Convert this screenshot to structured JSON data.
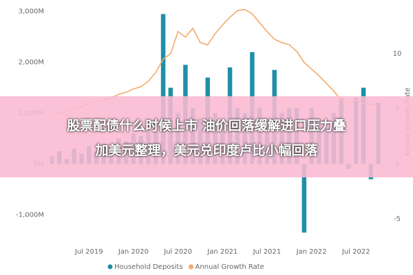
{
  "chart_data": {
    "type": "bar_line",
    "categories": [
      null,
      null,
      null,
      null,
      null,
      "Jul 2019",
      null,
      null,
      null,
      null,
      null,
      "Jan 2020",
      null,
      null,
      null,
      null,
      null,
      "Jul 2020",
      null,
      null,
      null,
      null,
      null,
      "Jan 2021",
      null,
      null,
      null,
      null,
      null,
      "Jul 2021",
      null,
      null,
      null,
      null,
      null,
      "Jan 2022",
      null,
      null,
      null,
      null,
      null,
      "Jul 2022",
      null,
      null,
      null
    ],
    "series": [
      {
        "name": "Household Deposits",
        "color": "#1f8fa8",
        "type": "bar",
        "values": [
          150,
          250,
          100,
          300,
          200,
          350,
          250,
          400,
          300,
          500,
          450,
          600,
          550,
          700,
          900,
          2950,
          1500,
          1000,
          1950,
          1100,
          900,
          1700,
          1000,
          800,
          1900,
          1100,
          1000,
          2200,
          1100,
          900,
          1850,
          1000,
          1100,
          1100,
          -1350,
          1100,
          900,
          700,
          1000,
          1300,
          -100,
          1300,
          1500,
          -300,
          1200
        ]
      },
      {
        "name": "Annual Growth Rate",
        "color": "#f2a96a",
        "type": "line",
        "axis": "y2",
        "values": [
          4.5,
          4.6,
          4.8,
          5.0,
          5.2,
          5.5,
          5.6,
          5.8,
          6.0,
          6.3,
          6.5,
          6.8,
          7.0,
          7.5,
          8.3,
          9.5,
          10.0,
          12.0,
          11.5,
          12.3,
          11.0,
          10.8,
          11.8,
          12.6,
          13.3,
          13.9,
          14.0,
          13.6,
          12.8,
          12.0,
          11.3,
          11.0,
          10.8,
          10.2,
          9.2,
          8.6,
          8.0,
          7.3,
          6.6,
          5.8,
          5.4,
          5.8,
          5.5,
          5.4,
          5.3
        ]
      }
    ],
    "ylim": [
      -1400,
      3050
    ],
    "yticks": [
      {
        "value": -1000,
        "label": "-1,000M"
      },
      {
        "value": 0,
        "label": "0M"
      },
      {
        "value": 1000,
        "label": "1,000M"
      },
      {
        "value": 2000,
        "label": "2,000M"
      },
      {
        "value": 3000,
        "label": "3,000M"
      }
    ],
    "y2lim": [
      -6.45,
      14.05
    ],
    "y2ticks": [
      -5,
      0,
      5,
      10
    ],
    "y2label": "Annual Growth Rate",
    "legend": "bottom"
  },
  "overlay": {
    "lines": [
      "股票配债什么时候上市 油价回落缓解进口压力叠",
      "加美元整理，美元兑印度卢比小幅回落"
    ]
  }
}
